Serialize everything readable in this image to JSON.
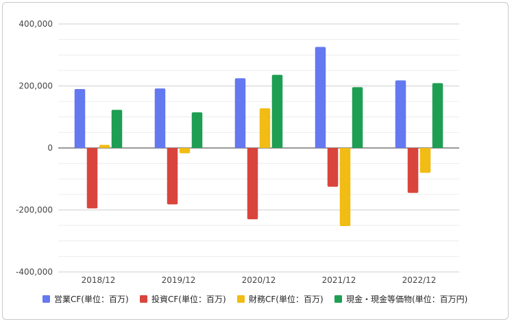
{
  "chart_data": {
    "type": "bar",
    "title": "",
    "xlabel": "",
    "ylabel": "",
    "categories": [
      "2018/12",
      "2019/12",
      "2020/12",
      "2021/12",
      "2022/12"
    ],
    "ylim": [
      -400000,
      400000
    ],
    "yticks": [
      400000,
      200000,
      0,
      -200000,
      -400000
    ],
    "ytick_labels": [
      "400,000",
      "200,000",
      "0",
      "-200,000",
      "-400,000"
    ],
    "grid": true,
    "legend_position": "bottom",
    "series": [
      {
        "name": "営業CF(単位：百万)",
        "color": "#6478f0",
        "values": [
          190000,
          192000,
          225000,
          326000,
          218000
        ]
      },
      {
        "name": "投資CF(単位：百万)",
        "color": "#d9453c",
        "values": [
          -195000,
          -182000,
          -230000,
          -125000,
          -145000
        ]
      },
      {
        "name": "財務CF(単位：百万)",
        "color": "#f1bc13",
        "values": [
          10000,
          -17000,
          128000,
          -252000,
          -80000
        ]
      },
      {
        "name": "現金・現金等価物(単位：百万円)",
        "color": "#1e9e52",
        "values": [
          123000,
          115000,
          236000,
          196000,
          209000
        ]
      }
    ]
  }
}
